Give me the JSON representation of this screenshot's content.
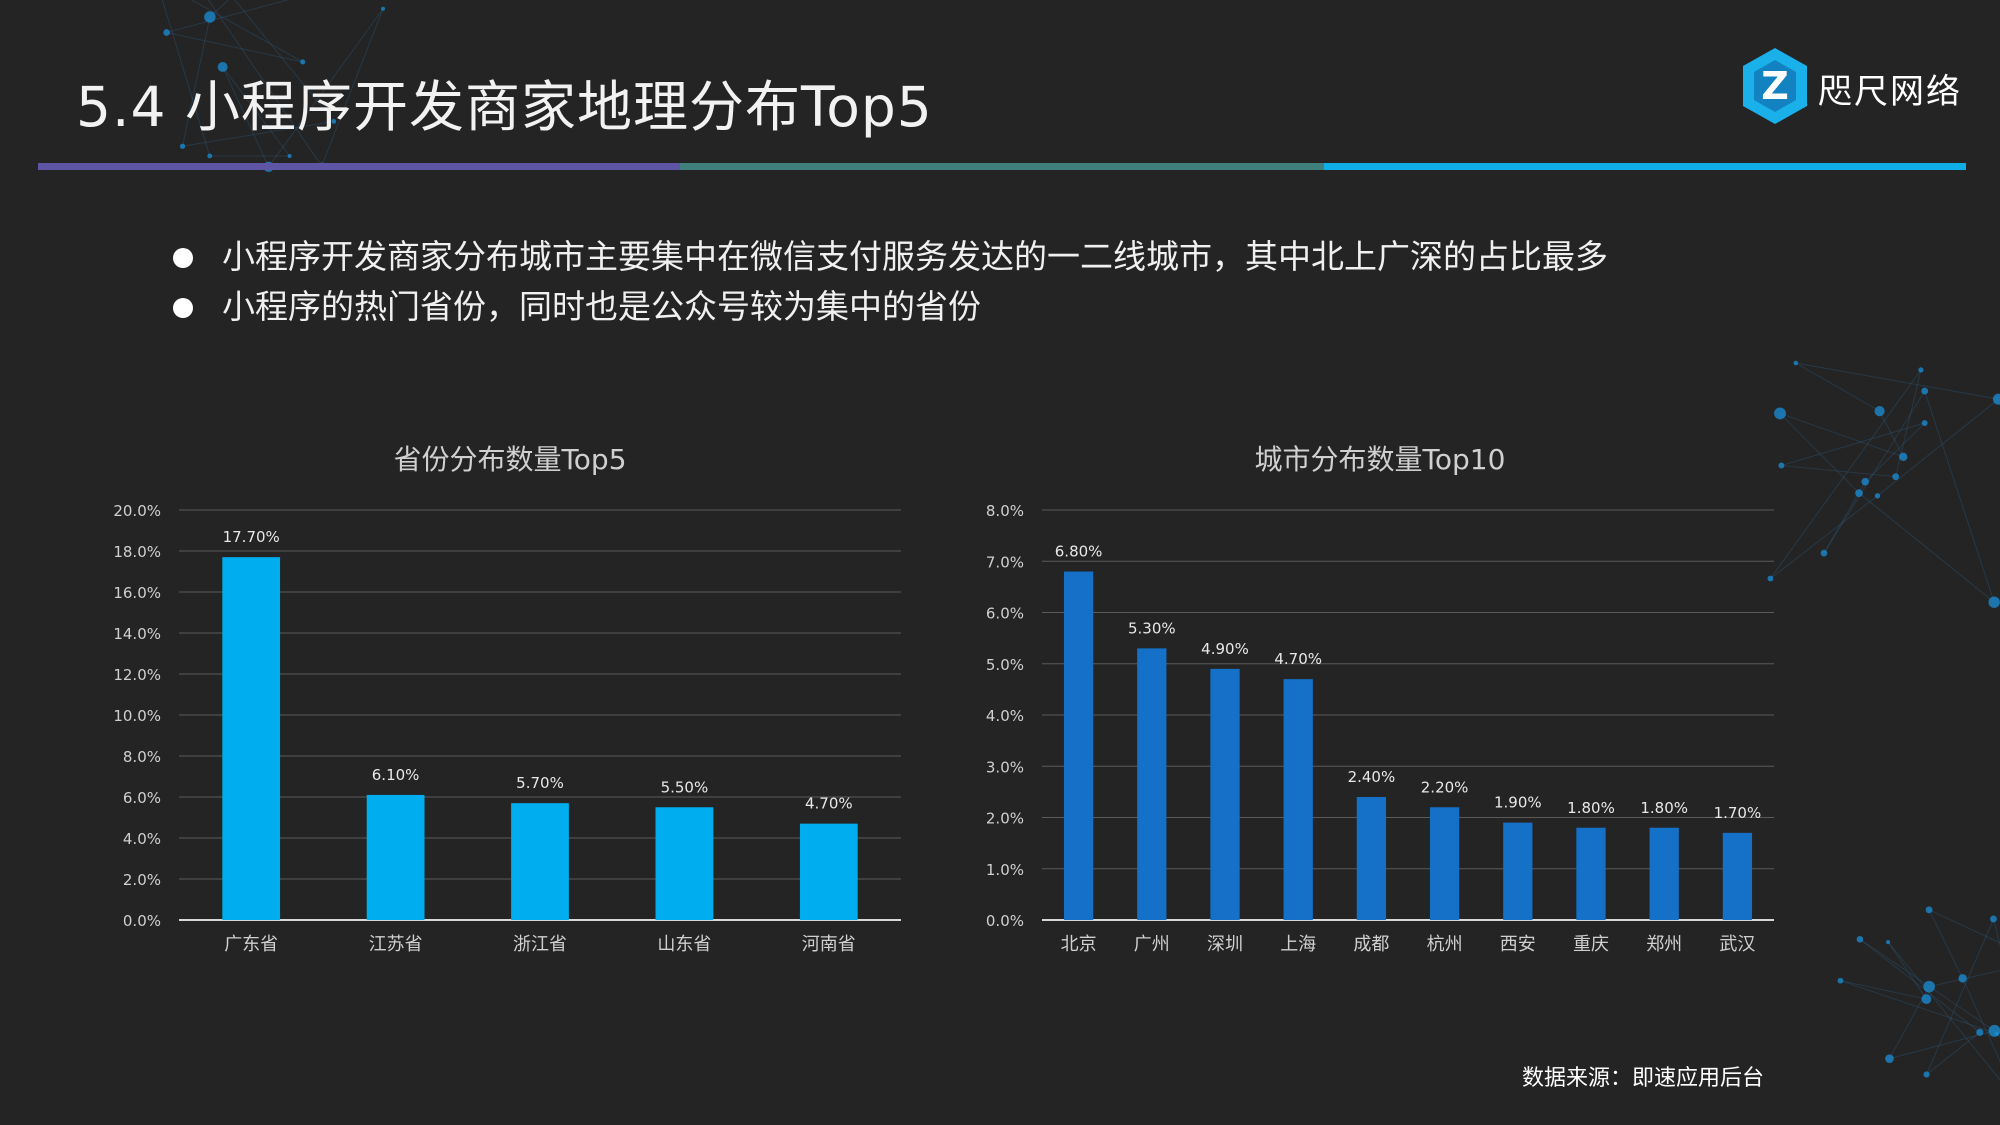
{
  "header": {
    "title": "5.4 小程序开发商家地理分布Top5",
    "brand_name": "咫尺网络",
    "brand_logo_letter": "Z"
  },
  "bullets": [
    "小程序开发商家分布城市主要集中在微信支付服务发达的一二线城市，其中北上广深的占比最多",
    "小程序的热门省份，同时也是公众号较为集中的省份"
  ],
  "chart_data": [
    {
      "type": "bar",
      "title": "省份分布数量Top5",
      "categories": [
        "广东省",
        "江苏省",
        "浙江省",
        "山东省",
        "河南省"
      ],
      "values": [
        17.7,
        6.1,
        5.7,
        5.5,
        4.7
      ],
      "data_labels": [
        "17.70%",
        "6.10%",
        "5.70%",
        "5.50%",
        "4.70%"
      ],
      "ylim": [
        0,
        20
      ],
      "y_ticks": [
        "0.0%",
        "2.0%",
        "4.0%",
        "6.0%",
        "8.0%",
        "10.0%",
        "12.0%",
        "14.0%",
        "16.0%",
        "18.0%",
        "20.0%"
      ],
      "xlabel": "",
      "ylabel": "",
      "grid": true,
      "legend": "none",
      "bar_color": "#00aeef"
    },
    {
      "type": "bar",
      "title": "城市分布数量Top10",
      "categories": [
        "北京",
        "广州",
        "深圳",
        "上海",
        "成都",
        "杭州",
        "西安",
        "重庆",
        "郑州",
        "武汉"
      ],
      "values": [
        6.8,
        5.3,
        4.9,
        4.7,
        2.4,
        2.2,
        1.9,
        1.8,
        1.8,
        1.7
      ],
      "data_labels": [
        "6.80%",
        "5.30%",
        "4.90%",
        "4.70%",
        "2.40%",
        "2.20%",
        "1.90%",
        "1.80%",
        "1.80%",
        "1.70%"
      ],
      "ylim": [
        0,
        8
      ],
      "y_ticks": [
        "0.0%",
        "1.0%",
        "2.0%",
        "3.0%",
        "4.0%",
        "5.0%",
        "6.0%",
        "7.0%",
        "8.0%"
      ],
      "xlabel": "",
      "ylabel": "",
      "grid": true,
      "legend": "none",
      "bar_color": "#1570c8"
    }
  ],
  "footer": {
    "source": "数据来源：即速应用后台"
  },
  "colors": {
    "background": "#242424",
    "rule_left": "#5f55a5",
    "rule_mid": "#3f7f7c",
    "rule_right": "#10aee6",
    "brand_hex": "#1ab0ea"
  }
}
